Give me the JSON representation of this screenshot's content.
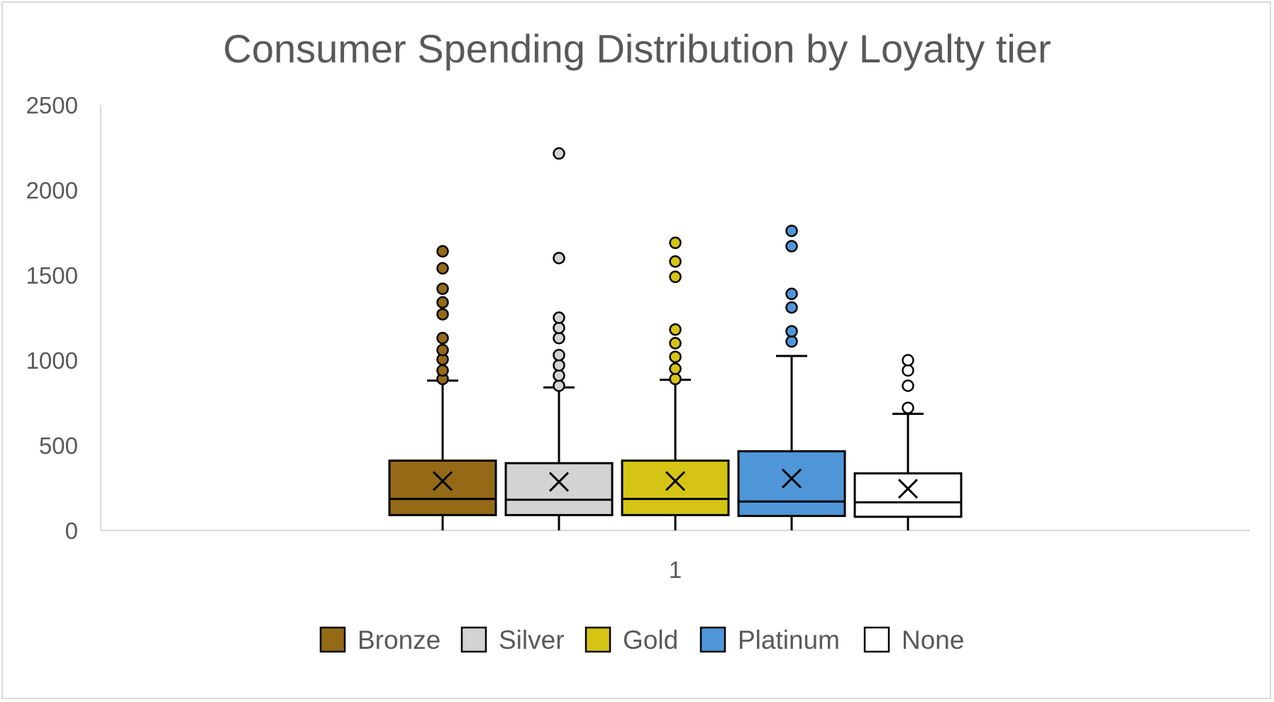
{
  "chart_data": {
    "type": "box",
    "title": "Consumer Spending Distribution by Loyalty tier",
    "xlabel": "",
    "ylabel": "",
    "categories": [
      "1"
    ],
    "ylim": [
      0,
      2500
    ],
    "yticks": [
      0,
      500,
      1000,
      1500,
      2000,
      2500
    ],
    "grid": false,
    "legend_position": "bottom",
    "series": [
      {
        "name": "Bronze",
        "color": "#946a17",
        "q1": 90,
        "median": 185,
        "q3": 410,
        "mean": 290,
        "whisker_low": 0,
        "whisker_high": 880,
        "outliers": [
          890,
          940,
          1005,
          1060,
          1130,
          1270,
          1340,
          1420,
          1540,
          1640
        ]
      },
      {
        "name": "Silver",
        "color": "#d3d3d3",
        "q1": 90,
        "median": 180,
        "q3": 395,
        "mean": 285,
        "whisker_low": 0,
        "whisker_high": 840,
        "outliers": [
          850,
          910,
          970,
          1030,
          1130,
          1190,
          1250,
          1600,
          2215
        ]
      },
      {
        "name": "Gold",
        "color": "#d6c414",
        "q1": 90,
        "median": 185,
        "q3": 410,
        "mean": 290,
        "whisker_low": 0,
        "whisker_high": 885,
        "outliers": [
          890,
          950,
          1020,
          1100,
          1180,
          1490,
          1580,
          1690
        ]
      },
      {
        "name": "Platinum",
        "color": "#4f96d8",
        "q1": 85,
        "median": 170,
        "q3": 465,
        "mean": 305,
        "whisker_low": 0,
        "whisker_high": 1025,
        "outliers": [
          1110,
          1170,
          1310,
          1390,
          1670,
          1760
        ]
      },
      {
        "name": "None",
        "color": "#ffffff",
        "q1": 80,
        "median": 165,
        "q3": 335,
        "mean": 245,
        "whisker_low": 0,
        "whisker_high": 685,
        "outliers": [
          720,
          850,
          940,
          1000
        ]
      }
    ]
  }
}
